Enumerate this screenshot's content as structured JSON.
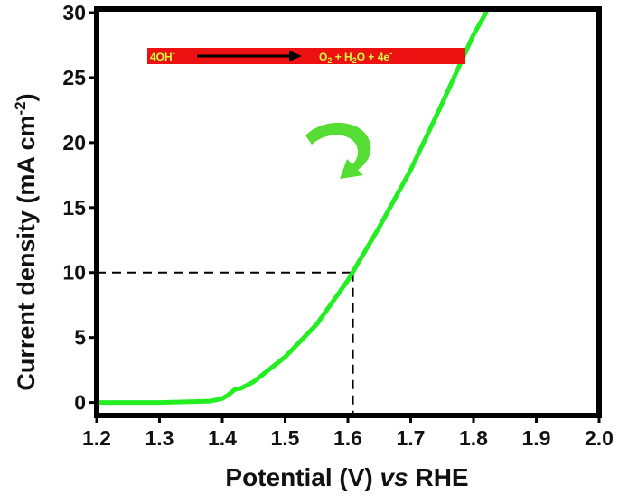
{
  "chart_data": {
    "type": "line",
    "x": [
      1.2,
      1.3,
      1.38,
      1.4,
      1.41,
      1.42,
      1.43,
      1.45,
      1.5,
      1.55,
      1.6,
      1.65,
      1.7,
      1.75,
      1.8,
      1.82
    ],
    "series": [
      {
        "color": "#22ee22",
        "values": [
          0,
          0,
          0.1,
          0.3,
          0.6,
          1.0,
          1.1,
          1.6,
          3.5,
          6.0,
          9.4,
          13.5,
          17.9,
          23.0,
          28.3,
          30
        ]
      }
    ],
    "xlim": [
      1.2,
      2.0
    ],
    "xticks": [
      1.2,
      1.3,
      1.4,
      1.5,
      1.6,
      1.7,
      1.8,
      1.9,
      {
        "value": 2,
        "label": "2.0"
      }
    ],
    "ylim": [
      -1,
      30
    ],
    "yticks": [
      0,
      5,
      10,
      15,
      20,
      25,
      30
    ],
    "xlabel": {
      "main": "Potential (V) ",
      "italic": "vs",
      "end": " RHE"
    },
    "ylabel": {
      "main": "Current density (mA cm",
      "sup": "-2",
      "end": ")"
    },
    "reference": {
      "x": 1.608,
      "y": 10
    },
    "reaction": {
      "left": "4OH",
      "left_sup": "-",
      "right_o": "O",
      "right_o_sub": "2",
      "right_mid": " + H",
      "right_h_sub": "2",
      "right_end": "O + 4e",
      "right_sup": "-"
    }
  }
}
